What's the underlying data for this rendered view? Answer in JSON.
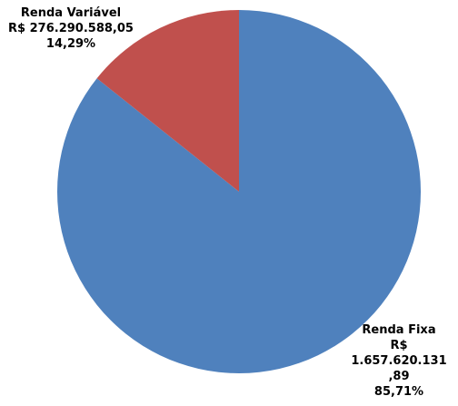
{
  "chart_data": {
    "type": "pie",
    "title": "",
    "legend": false,
    "slices": [
      {
        "name": "Renda Fixa",
        "value": 1657620131.89,
        "percent": 85.71,
        "value_label": "R$ 1.657.620.131,89",
        "percent_label": "85,71%",
        "color": "#4F81BD",
        "label_lines": [
          "Renda Fixa",
          "R$",
          "1.657.620.131",
          ",89",
          "85,71%"
        ]
      },
      {
        "name": "Renda Variável",
        "value": 276290588.05,
        "percent": 14.29,
        "value_label": "R$ 276.290.588,05",
        "percent_label": "14,29%",
        "color": "#C0504D",
        "label_lines": [
          "Renda Variável",
          "R$ 276.290.588,05",
          "14,29%"
        ]
      }
    ]
  }
}
